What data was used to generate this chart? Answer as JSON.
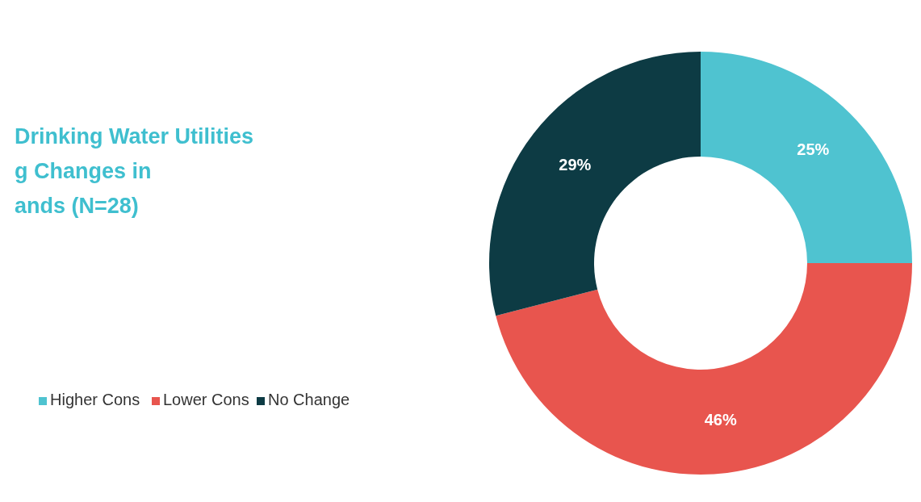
{
  "chart_data": {
    "type": "donut",
    "title": "Drinking Water Utilities\ng Changes in\nands (N=28)",
    "categories": [
      "Higher Cons",
      "Lower Cons",
      "No Change"
    ],
    "values": [
      25,
      46,
      29
    ],
    "value_labels": [
      "25%",
      "46%",
      "29%"
    ],
    "colors": [
      "#4fc3d0",
      "#e8554e",
      "#0d3b44"
    ],
    "legend": "left"
  }
}
